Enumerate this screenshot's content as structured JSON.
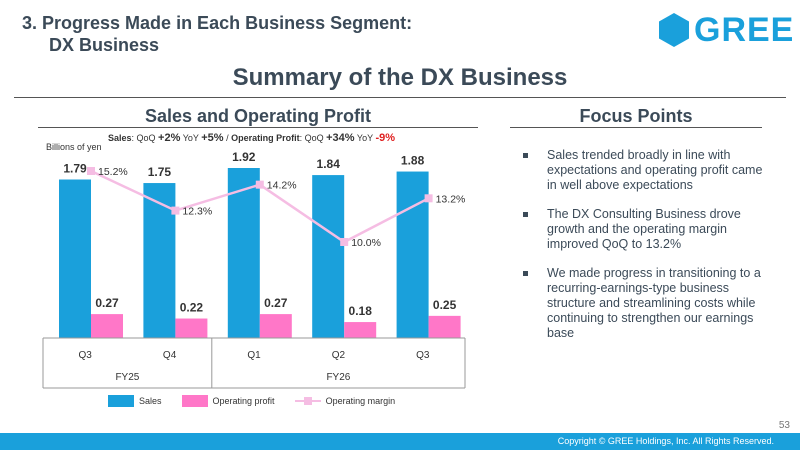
{
  "header": {
    "section_line1": "3. Progress Made in Each Business Segment:",
    "section_line2": "DX Business",
    "logo_text": "GREE",
    "logo_color": "#1aa0db"
  },
  "main_title": "Summary of the DX Business",
  "left_panel": {
    "title": "Sales and Operating Profit",
    "growth": {
      "sales_label": "Sales",
      "qoq_label": ": QoQ ",
      "sales_qoq": "+2%",
      "yoy_label": " YoY ",
      "sales_yoy": "+5%",
      "sep": " / ",
      "op_label": "Operating Profit",
      "op_qoq_label": ": QoQ ",
      "op_qoq": "+34%",
      "op_yoy_label": " YoY ",
      "op_yoy": "-9%"
    },
    "unit": "Billions of yen"
  },
  "right_panel": {
    "title": "Focus Points",
    "bullets": [
      "Sales trended broadly in line with expectations and operating profit came in well above expectations",
      "The DX Consulting Business drove growth and the operating margin improved QoQ to 13.2%",
      "We made progress in transitioning to a recurring-earnings-type business structure and streamlining costs while continuing to strengthen our earnings base"
    ]
  },
  "chart_data": {
    "type": "bar",
    "categories": [
      "Q3",
      "Q4",
      "Q1",
      "Q2",
      "Q3"
    ],
    "groups": [
      {
        "label": "FY25",
        "categories": [
          "Q3",
          "Q4"
        ]
      },
      {
        "label": "FY26",
        "categories": [
          "Q1",
          "Q2",
          "Q3"
        ]
      }
    ],
    "series": [
      {
        "name": "Sales",
        "kind": "bar",
        "color": "#1aa0db",
        "values": [
          1.79,
          1.75,
          1.92,
          1.84,
          1.88
        ],
        "labels": [
          "1.79",
          "1.75",
          "1.92",
          "1.84",
          "1.88"
        ]
      },
      {
        "name": "Operating profit",
        "kind": "bar",
        "color": "#ff77c8",
        "values": [
          0.27,
          0.22,
          0.27,
          0.18,
          0.25
        ],
        "labels": [
          "0.27",
          "0.22",
          "0.27",
          "0.18",
          "0.25"
        ]
      },
      {
        "name": "Operating margin",
        "kind": "line",
        "color": "#f5bde3",
        "values": [
          15.2,
          12.3,
          14.2,
          10.0,
          13.2
        ],
        "labels": [
          "15.2%",
          "12.3%",
          "14.2%",
          "10.0%",
          "13.2%"
        ]
      }
    ],
    "ylabel": "Billions of yen",
    "legend_position": "bottom"
  },
  "page_number": "53",
  "footer_text": "Copyright © GREE Holdings, Inc. All Rights Reserved."
}
